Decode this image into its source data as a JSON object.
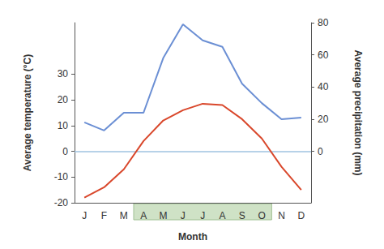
{
  "chart_data": {
    "type": "line",
    "xlabel": "Month",
    "ylabel": "Average temperature (°C)",
    "y2label": "Average precipitation (mm)",
    "categories": [
      "J",
      "F",
      "M",
      "A",
      "M",
      "J",
      "J",
      "A",
      "S",
      "O",
      "N",
      "D"
    ],
    "series": [
      {
        "color": "#d9472b",
        "values": [
          -18,
          -14,
          -7,
          4,
          12,
          16,
          18.5,
          18,
          12.5,
          5,
          -6,
          -15
        ]
      },
      {
        "color": "#6b8fd4",
        "axis": "y2",
        "values": [
          18,
          13,
          24,
          24,
          58,
          79,
          69,
          65,
          42,
          30,
          20,
          21
        ]
      }
    ],
    "ylim": [
      -20,
      50
    ],
    "yticks": [
      -20,
      -10,
      0,
      10,
      20,
      30
    ],
    "y2lim": [
      -32,
      80
    ],
    "y2ticks": [
      0,
      20,
      40,
      60,
      80
    ],
    "reference_line": {
      "axis": "y",
      "value": 0,
      "color": "#9fc3e0"
    },
    "highlight": {
      "from": 3,
      "to": 9,
      "color": "#cfe2c6"
    },
    "grid": false
  }
}
